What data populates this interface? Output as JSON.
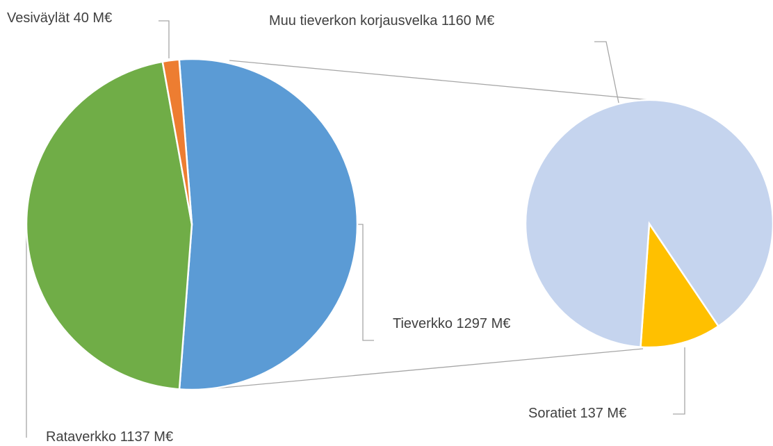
{
  "chart_data": {
    "type": "pie",
    "categories": [
      "Tieverkko",
      "Rataverkko",
      "Vesiväylät"
    ],
    "values": [
      1297,
      1137,
      40
    ],
    "value_labels": [
      "1297 M€",
      "1137 M€",
      "40 M€"
    ],
    "colors": [
      "#5b9bd5",
      "#70ad47",
      "#ed7d31"
    ],
    "secondary": {
      "categories": [
        "Soratiet",
        "Muu tieverkon korjausvelka"
      ],
      "values": [
        137,
        1160
      ],
      "value_labels": [
        "137 M€",
        "1160 M€"
      ],
      "colors": [
        "#ffc000",
        "#c5d4ee"
      ]
    }
  }
}
